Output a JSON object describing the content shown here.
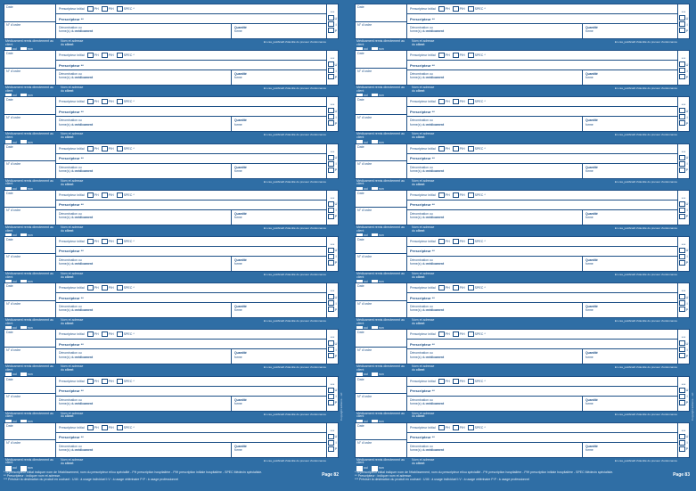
{
  "form": {
    "date_label": "Date",
    "ordre_label": "N° d'ordre",
    "prescripteur_initial": "Prescripteur initial",
    "options": [
      "PH",
      "PIH",
      "SPEC"
    ],
    "prescripteur": "Prescripteur",
    "den_line1": "Dénomination ou",
    "den_line2a": "forme(s) du ",
    "den_line2b": "médicament",
    "qty_label": "Quantité",
    "qty_sub": "forme",
    "codes": [
      "U",
      "I",
      "P"
    ],
    "strip_left": "Médicament remis directement au client",
    "strip_oui": "oui",
    "strip_non": "non",
    "strip_mid1": "Nom et adresse",
    "strip_mid2a": "du ",
    "strip_mid2b": "client",
    "strip_right": "En cas_justificatif d'identité du preneur d'ordonnance"
  },
  "footnotes": {
    "line1": "* Si prescripteur initial indiquer nom de l'établissement, nom du prescripteur et/ou spécialité - PH prescription hospitalière - PIH prescription initiale hospitalière - SPEC Médecin spécialiste.",
    "line2": "** Prescripteur : indiquer nom et adresse.",
    "line3": "*** Préciser la destination du produit en cochant : U:M : à usage individuel  I:V : à usage vétérinaire  P:P : à usage professionnel"
  },
  "pages": [
    {
      "number": "Page 82",
      "side_text": "Copyright Editions... ref."
    },
    {
      "number": "Page 83",
      "side_text": "Copyright Editions... ref."
    }
  ]
}
